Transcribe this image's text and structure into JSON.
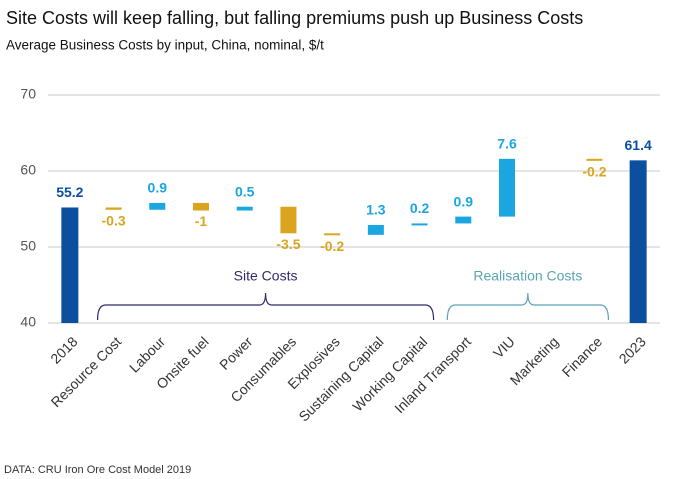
{
  "chart_data": {
    "type": "waterfall",
    "title": "Site Costs will keep falling, but falling premiums push up Business Costs",
    "subtitle": "Average Business Costs by input, China, nominal, $/t",
    "categories": [
      "2018",
      "Resource Cost",
      "Labour",
      "Onsite fuel",
      "Power",
      "Consumables",
      "Explosives",
      "Sustaining Capital",
      "Working Capital",
      "Inland Transport",
      "VIU",
      "Marketing",
      "Finance",
      "2023"
    ],
    "values": [
      55.2,
      -0.3,
      0.9,
      -1.0,
      0.5,
      -3.5,
      -0.2,
      1.3,
      0.2,
      0.9,
      7.6,
      null,
      -0.2,
      61.4
    ],
    "colors": {
      "total": "#0b4f9e",
      "increase": "#1ba5e1",
      "decrease": "#d9a521"
    },
    "ylim": [
      40,
      70
    ],
    "yticks": [
      40,
      50,
      60,
      70
    ],
    "grid": true,
    "groups": [
      {
        "label": "Site Costs",
        "span": [
          1,
          8
        ],
        "color": "#2d2b6b"
      },
      {
        "label": "Realisation Costs",
        "span": [
          9,
          12
        ],
        "color": "#5aa3b3"
      }
    ],
    "source": "DATA: CRU Iron Ore Cost Model 2019"
  }
}
